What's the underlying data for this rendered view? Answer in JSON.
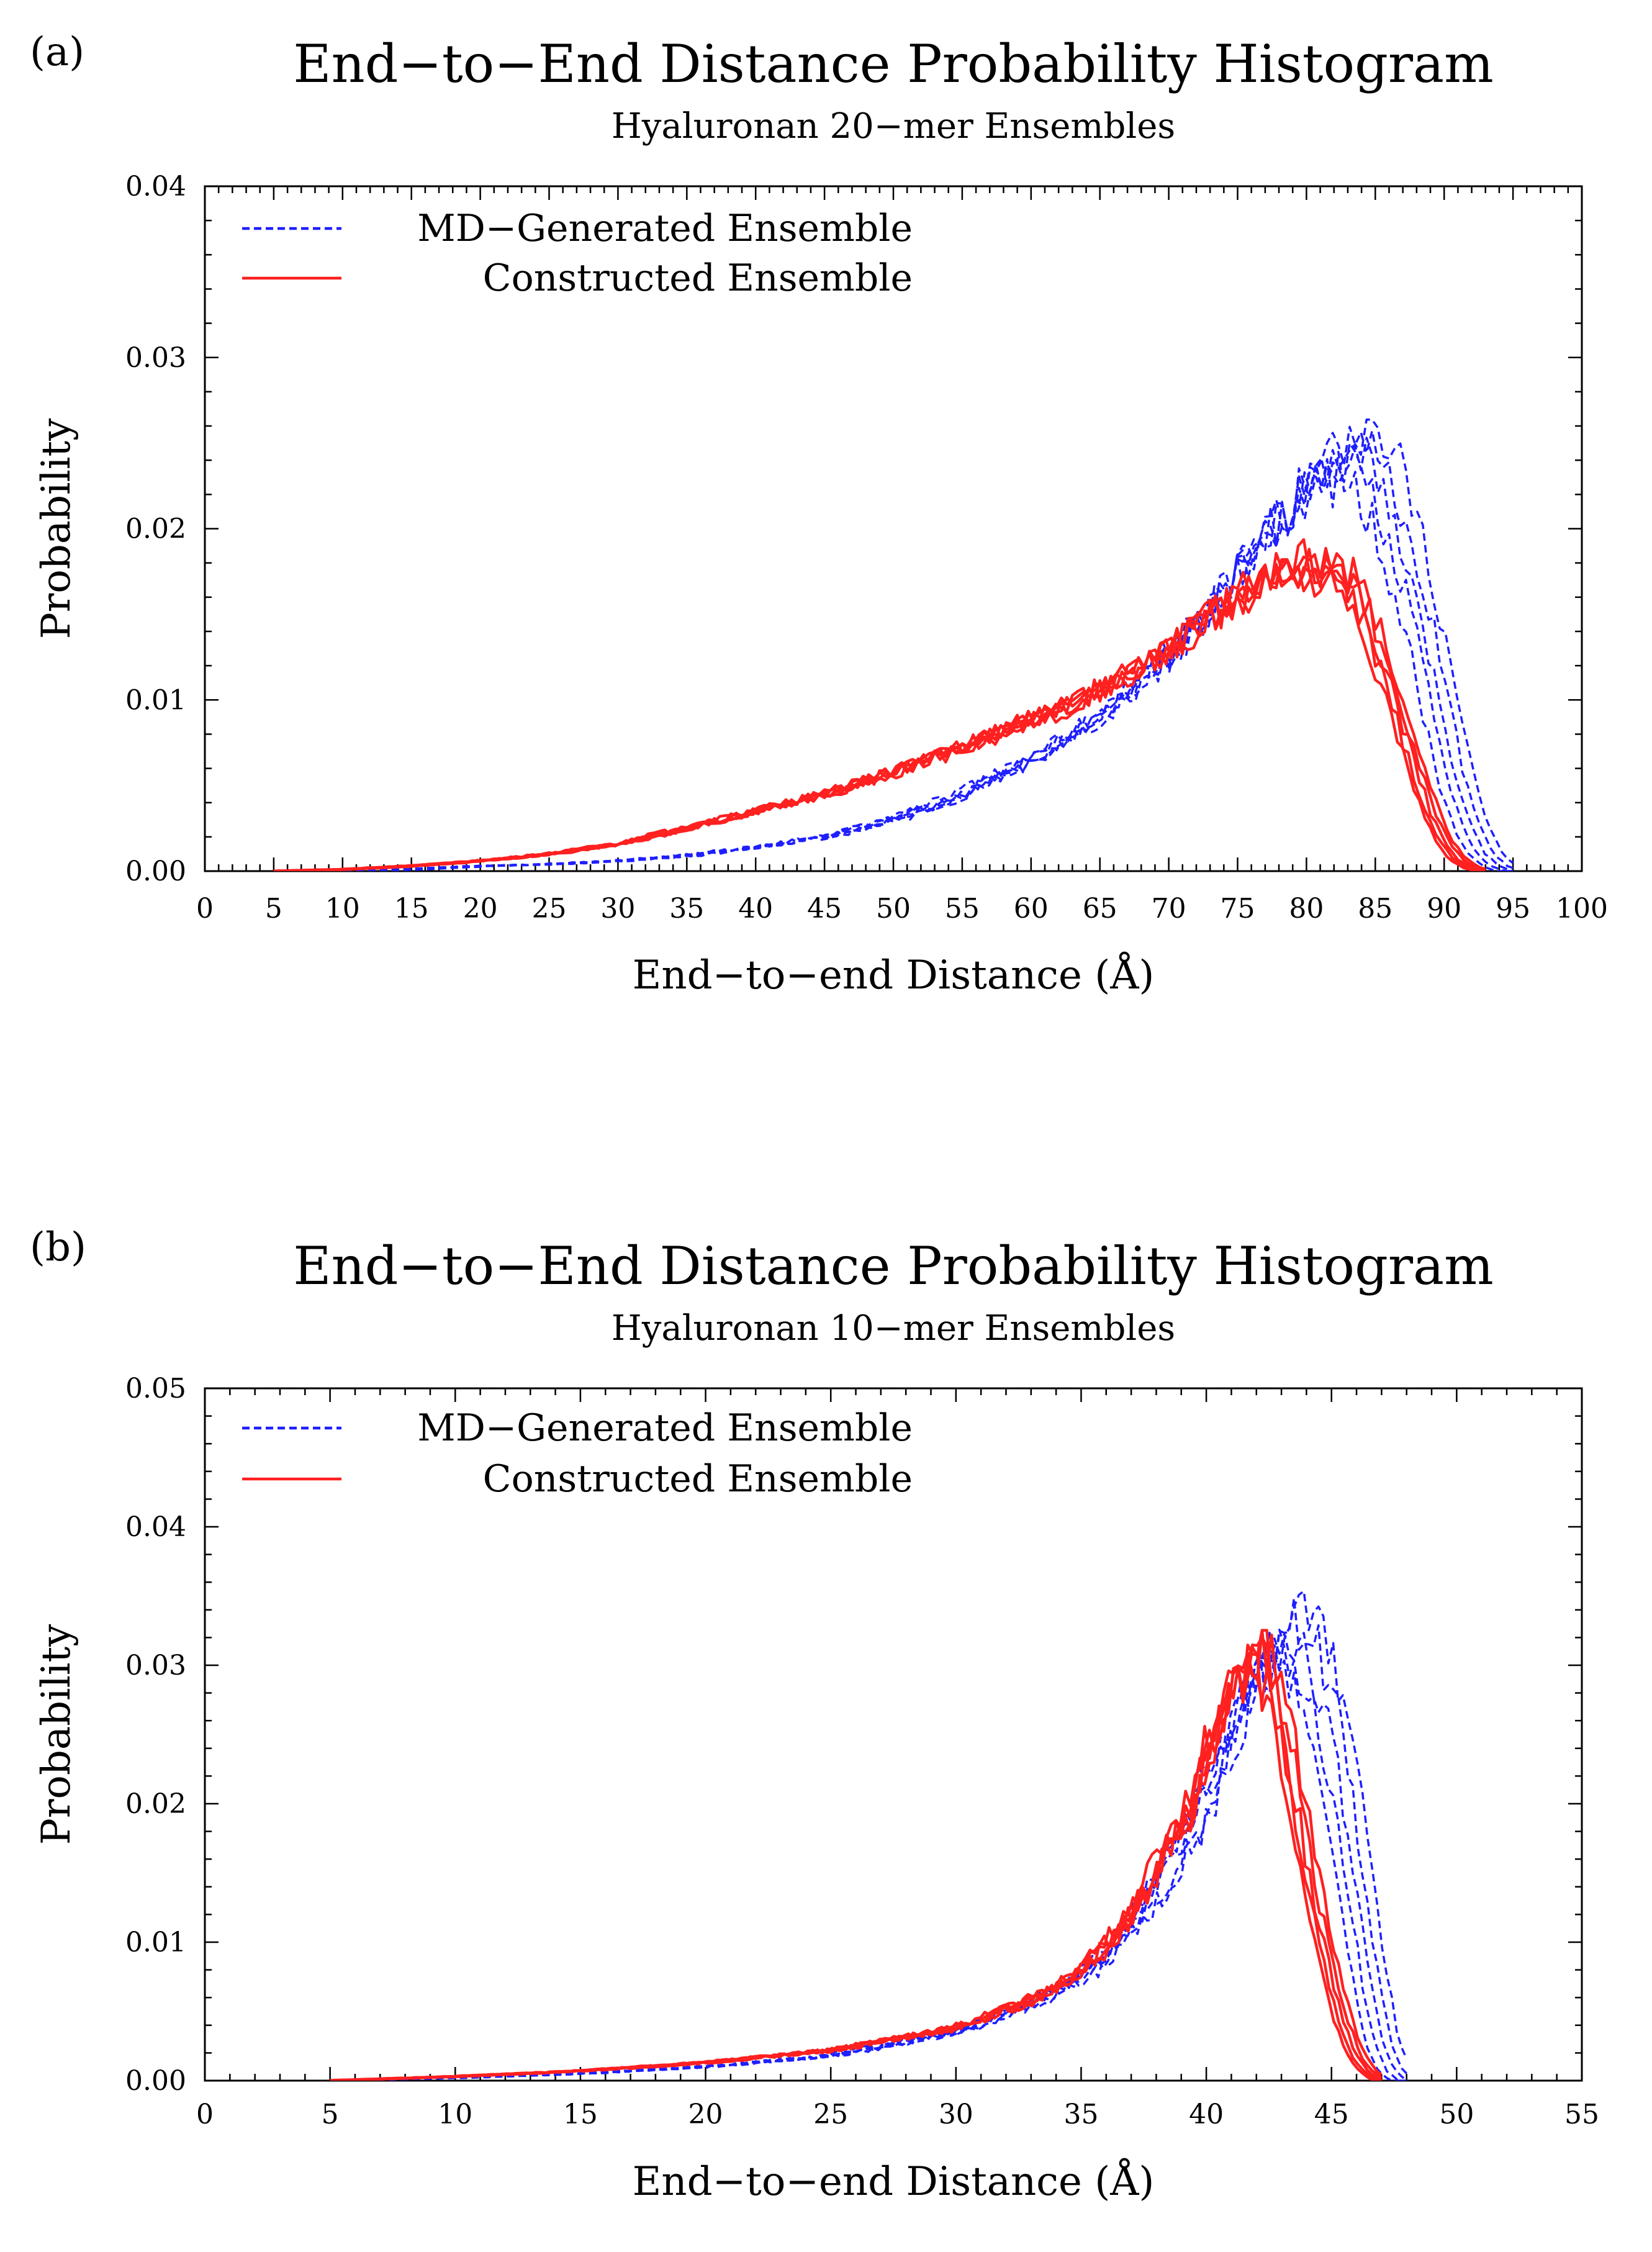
{
  "chart_data": [
    {
      "type": "line",
      "panel_label": "(a)",
      "title": "End−to−End Distance Probability Histogram",
      "subtitle": "Hyaluronan 20−mer Ensembles",
      "xlabel": "End−to−end Distance (Å)",
      "ylabel": "Probability",
      "xlim": [
        0,
        100
      ],
      "ylim": [
        0,
        0.04
      ],
      "xticks": [
        0,
        5,
        10,
        15,
        20,
        25,
        30,
        35,
        40,
        45,
        50,
        55,
        60,
        65,
        70,
        75,
        80,
        85,
        90,
        95,
        100
      ],
      "yticks": [
        0.0,
        0.01,
        0.02,
        0.03,
        0.04
      ],
      "ytick_labels": [
        "0.00",
        "0.01",
        "0.02",
        "0.03",
        "0.04"
      ],
      "legend_position": "top-left",
      "grid": false,
      "series": [
        {
          "name": "MD−Generated Ensemble",
          "color": "#1f1fff",
          "style": "dashed",
          "x": [
            5,
            10,
            15,
            20,
            25,
            30,
            35,
            40,
            45,
            50,
            55,
            60,
            65,
            70,
            75,
            78,
            80,
            82,
            84,
            85,
            86,
            87,
            88,
            89,
            90,
            91,
            92,
            93,
            94,
            95
          ],
          "y": [
            0.0,
            0.0,
            0.0001,
            0.0003,
            0.0004,
            0.0006,
            0.0009,
            0.0014,
            0.002,
            0.003,
            0.0045,
            0.0065,
            0.009,
            0.0125,
            0.0175,
            0.0205,
            0.0225,
            0.024,
            0.0245,
            0.023,
            0.0215,
            0.019,
            0.016,
            0.0125,
            0.0085,
            0.005,
            0.0025,
            0.001,
            0.0003,
            0.0
          ]
        },
        {
          "name": "Constructed Ensemble",
          "color": "#ff2020",
          "style": "solid",
          "x": [
            5,
            10,
            15,
            20,
            25,
            30,
            35,
            40,
            45,
            50,
            55,
            60,
            65,
            70,
            75,
            78,
            80,
            82,
            83,
            84,
            85,
            86,
            87,
            88,
            89,
            90,
            91,
            92,
            93
          ],
          "y": [
            0.0,
            0.0001,
            0.0003,
            0.0006,
            0.001,
            0.0016,
            0.0025,
            0.0035,
            0.0045,
            0.0058,
            0.0072,
            0.0088,
            0.0105,
            0.013,
            0.016,
            0.0175,
            0.0178,
            0.0175,
            0.017,
            0.0155,
            0.0135,
            0.011,
            0.0085,
            0.006,
            0.0035,
            0.0018,
            0.0007,
            0.0002,
            0.0
          ]
        }
      ]
    },
    {
      "type": "line",
      "panel_label": "(b)",
      "title": "End−to−End Distance Probability Histogram",
      "subtitle": "Hyaluronan 10−mer Ensembles",
      "xlabel": "End−to−end Distance (Å)",
      "ylabel": "Probability",
      "xlim": [
        0,
        55
      ],
      "ylim": [
        0,
        0.05
      ],
      "xticks": [
        0,
        5,
        10,
        15,
        20,
        25,
        30,
        35,
        40,
        45,
        50,
        55
      ],
      "yticks": [
        0.0,
        0.01,
        0.02,
        0.03,
        0.04,
        0.05
      ],
      "ytick_labels": [
        "0.00",
        "0.01",
        "0.02",
        "0.03",
        "0.04",
        "0.05"
      ],
      "legend_position": "top-left",
      "grid": false,
      "series": [
        {
          "name": "MD−Generated Ensemble",
          "color": "#1f1fff",
          "style": "dashed",
          "x": [
            5,
            10,
            15,
            20,
            25,
            30,
            33,
            35,
            37,
            39,
            40,
            41,
            42,
            43,
            44,
            45,
            45.5,
            46,
            46.5,
            47,
            47.5,
            48
          ],
          "y": [
            0.0,
            0.0002,
            0.0005,
            0.001,
            0.0018,
            0.0035,
            0.0055,
            0.0075,
            0.011,
            0.0165,
            0.0205,
            0.025,
            0.029,
            0.032,
            0.031,
            0.025,
            0.02,
            0.014,
            0.008,
            0.003,
            0.0008,
            0.0
          ]
        },
        {
          "name": "Constructed Ensemble",
          "color": "#ff2020",
          "style": "solid",
          "x": [
            5,
            10,
            15,
            20,
            25,
            30,
            33,
            35,
            37,
            39,
            40,
            41,
            42,
            42.5,
            43,
            43.5,
            44,
            44.5,
            45,
            45.5,
            46,
            46.5,
            47
          ],
          "y": [
            0.0,
            0.0003,
            0.0007,
            0.0013,
            0.0022,
            0.0038,
            0.0058,
            0.0078,
            0.012,
            0.0185,
            0.0235,
            0.028,
            0.0305,
            0.0295,
            0.026,
            0.021,
            0.016,
            0.0115,
            0.0075,
            0.0042,
            0.0018,
            0.0006,
            0.0
          ]
        }
      ]
    }
  ]
}
